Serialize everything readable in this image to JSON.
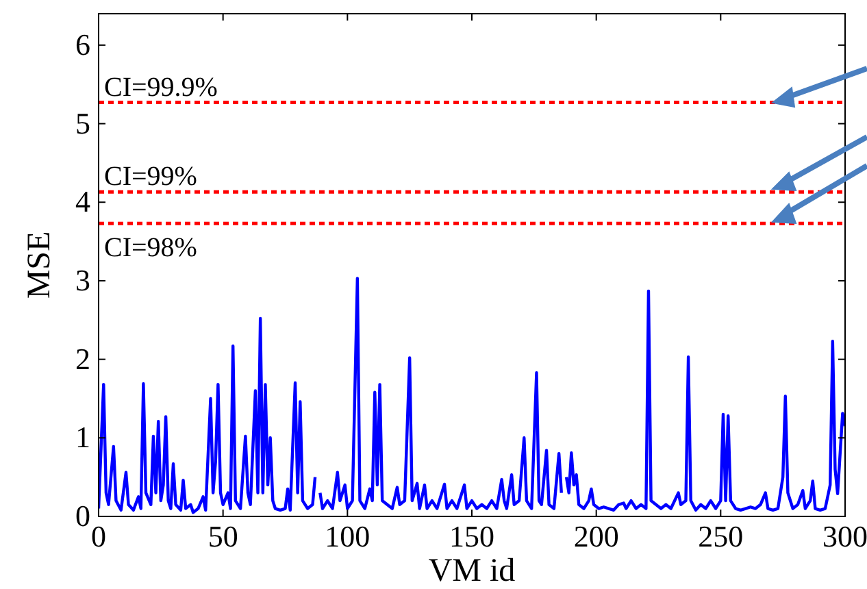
{
  "chart_data": {
    "type": "line",
    "xlabel": "VM id",
    "ylabel": "MSE",
    "xlim": [
      0,
      300
    ],
    "xticks": [
      0,
      50,
      100,
      150,
      200,
      250,
      300
    ],
    "ylim": [
      0,
      6.4
    ],
    "yticks": [
      0,
      1,
      2,
      3,
      4,
      5,
      6
    ],
    "grid": false,
    "marker": "none",
    "line_style": "solid",
    "series": [
      {
        "color": "#0000ff",
        "x": [
          0,
          2,
          3,
          4,
          6,
          7,
          9,
          11,
          12,
          14,
          16,
          17,
          18,
          19,
          21,
          22,
          23,
          24,
          25,
          26,
          27,
          28,
          29,
          30,
          31,
          33,
          34,
          35,
          37,
          38,
          40,
          42,
          43,
          45,
          46,
          47,
          48,
          49,
          50,
          52,
          53,
          54,
          55,
          57,
          59,
          60,
          61,
          63,
          64,
          65,
          66,
          67,
          68,
          69,
          70,
          71,
          73,
          75,
          76,
          77,
          79,
          80,
          81,
          82,
          84,
          86,
          87,
          88,
          89,
          90,
          92,
          94,
          96,
          97,
          99,
          100,
          102,
          104,
          105,
          107,
          109,
          110,
          111,
          112,
          113,
          114,
          116,
          118,
          120,
          121,
          123,
          125,
          126,
          128,
          129,
          131,
          132,
          134,
          136,
          139,
          140,
          142,
          144,
          147,
          148,
          150,
          152,
          154,
          156,
          158,
          160,
          162,
          163,
          164,
          166,
          167,
          169,
          171,
          172,
          174,
          176,
          177,
          178,
          180,
          181,
          183,
          185,
          186,
          187,
          188,
          189,
          190,
          191,
          192,
          193,
          195,
          197,
          198,
          199,
          201,
          203,
          205,
          207,
          209,
          211,
          212,
          214,
          216,
          218,
          220,
          221,
          222,
          224,
          226,
          228,
          230,
          233,
          234,
          236,
          237,
          238,
          240,
          242,
          244,
          246,
          248,
          250,
          251,
          252,
          253,
          254,
          256,
          258,
          260,
          262,
          264,
          266,
          268,
          269,
          271,
          273,
          275,
          276,
          277,
          279,
          281,
          283,
          284,
          286,
          287,
          288,
          290,
          292,
          294,
          295,
          296,
          297,
          299,
          300
        ],
        "values": [
          0.1,
          1.68,
          0.3,
          0.15,
          0.89,
          0.2,
          0.08,
          0.56,
          0.15,
          0.08,
          0.25,
          0.1,
          1.69,
          0.3,
          0.15,
          1.02,
          0.3,
          1.21,
          0.2,
          0.4,
          1.27,
          0.2,
          0.1,
          0.67,
          0.15,
          0.08,
          0.46,
          0.1,
          0.15,
          0.05,
          0.1,
          0.25,
          0.08,
          1.5,
          0.3,
          0.7,
          1.68,
          0.3,
          0.15,
          0.3,
          0.1,
          2.17,
          0.2,
          0.1,
          1.02,
          0.3,
          0.15,
          1.6,
          0.3,
          2.52,
          0.3,
          1.68,
          0.4,
          1.0,
          0.2,
          0.1,
          0.08,
          0.1,
          0.35,
          0.08,
          1.7,
          0.3,
          1.46,
          0.2,
          0.1,
          0.15,
          0.5,
          null,
          0.3,
          0.1,
          0.2,
          0.1,
          0.56,
          0.2,
          0.4,
          0.1,
          0.2,
          3.03,
          0.2,
          0.1,
          0.35,
          0.2,
          1.58,
          0.4,
          1.68,
          0.2,
          0.15,
          0.1,
          0.37,
          0.15,
          0.2,
          2.02,
          0.2,
          0.42,
          0.1,
          0.4,
          0.1,
          0.2,
          0.1,
          0.41,
          0.1,
          0.2,
          0.1,
          0.4,
          0.1,
          0.2,
          0.1,
          0.15,
          0.1,
          0.2,
          0.1,
          0.47,
          0.2,
          0.1,
          0.53,
          0.15,
          0.2,
          1.0,
          0.2,
          0.1,
          1.83,
          0.2,
          0.15,
          0.84,
          0.15,
          0.1,
          0.8,
          0.3,
          null,
          0.5,
          0.3,
          0.81,
          0.4,
          0.53,
          0.15,
          0.1,
          0.2,
          0.35,
          0.15,
          0.1,
          0.12,
          0.1,
          0.08,
          0.15,
          0.17,
          0.1,
          0.2,
          0.1,
          0.15,
          0.1,
          2.87,
          0.2,
          0.15,
          0.1,
          0.15,
          0.1,
          0.3,
          0.15,
          0.2,
          2.03,
          0.2,
          0.08,
          0.15,
          0.1,
          0.2,
          0.1,
          0.2,
          1.3,
          0.2,
          1.28,
          0.2,
          0.1,
          0.08,
          0.1,
          0.12,
          0.1,
          0.15,
          0.3,
          0.1,
          0.08,
          0.1,
          0.5,
          1.53,
          0.3,
          0.1,
          0.15,
          0.33,
          0.1,
          0.2,
          0.45,
          0.1,
          0.08,
          0.1,
          0.4,
          2.23,
          0.6,
          0.29,
          1.31,
          1.15
        ]
      }
    ],
    "ref_lines": [
      {
        "axis": "y",
        "value": 5.27,
        "color": "#ff0000",
        "line_style": "dotted"
      },
      {
        "axis": "y",
        "value": 4.13,
        "color": "#ff0000",
        "line_style": "dotted"
      },
      {
        "axis": "y",
        "value": 3.73,
        "color": "#ff0000",
        "line_style": "dotted"
      }
    ],
    "annotations": [
      {
        "text": "CI=99.9%",
        "y": 5.27
      },
      {
        "text": "CI=99%",
        "y": 4.13
      },
      {
        "text": "CI=98%",
        "y": 3.73
      }
    ]
  }
}
